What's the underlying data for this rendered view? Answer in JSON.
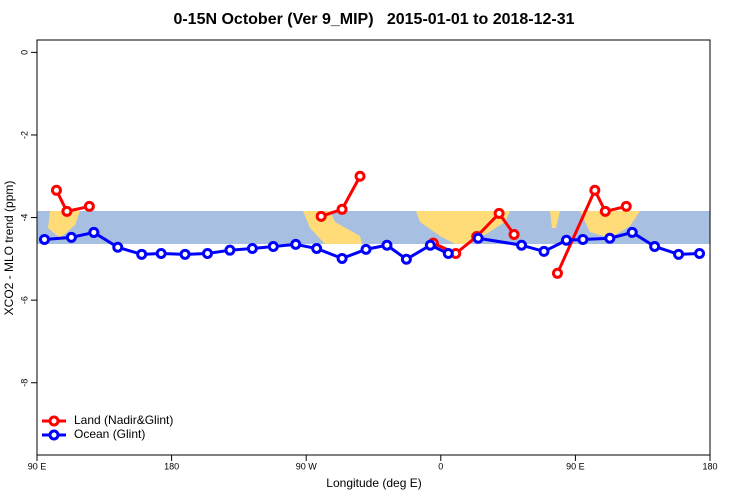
{
  "chart_data": {
    "type": "line",
    "title": "0-15N October (Ver 9_MIP)   2015-01-01 to 2018-12-31",
    "x_label": "Longitude (deg E)",
    "y_label": "XCO2 - MLO trend (ppm)",
    "xlim": [
      90,
      540
    ],
    "ylim": [
      -9.75,
      0.3
    ],
    "xticks": [
      {
        "value": 90,
        "label": "90 E"
      },
      180,
      {
        "value": 270,
        "label": "90 W"
      },
      {
        "value": 360,
        "label": "0"
      },
      {
        "value": 450,
        "label": "90 E"
      },
      {
        "value": 540,
        "label": "180"
      }
    ],
    "yticks": [
      0,
      -2,
      -4,
      -6,
      -8
    ],
    "legend": "bottom-left",
    "series": [
      {
        "name": "Land (Nadir&Glint)",
        "color": "#ff0000",
        "x": [
          103,
          110,
          125,
          null,
          280,
          294,
          306,
          null,
          355,
          370,
          384,
          399,
          409,
          null,
          438,
          463,
          470,
          484
        ],
        "values": [
          -3.34,
          -3.85,
          -3.73,
          null,
          -3.97,
          -3.8,
          -3.0,
          null,
          -4.62,
          -4.87,
          -4.46,
          -3.9,
          -4.41,
          null,
          -5.35,
          -3.34,
          -3.85,
          -3.73
        ]
      },
      {
        "name": "Ocean (Glint)",
        "color": "#0000ff",
        "x": [
          95,
          113,
          128,
          144,
          160,
          173,
          189,
          204,
          219,
          234,
          248,
          263,
          277,
          294,
          310,
          324,
          337,
          353,
          365,
          null,
          385,
          414,
          429,
          444,
          455,
          473,
          488,
          503,
          519,
          533
        ],
        "values": [
          -4.53,
          -4.48,
          -4.36,
          -4.72,
          -4.89,
          -4.87,
          -4.89,
          -4.87,
          -4.79,
          -4.75,
          -4.7,
          -4.65,
          -4.75,
          -4.99,
          -4.77,
          -4.67,
          -5.01,
          -4.67,
          -4.87,
          null,
          -4.5,
          -4.67,
          -4.82,
          -4.55,
          -4.53,
          -4.5,
          -4.36,
          -4.7,
          -4.89,
          -4.87
        ]
      }
    ]
  }
}
